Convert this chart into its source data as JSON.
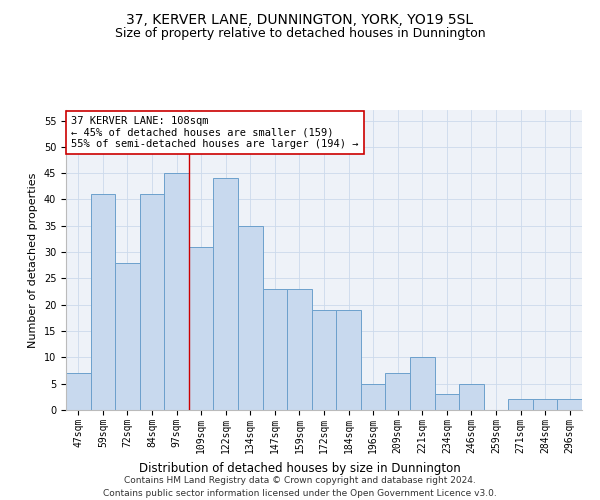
{
  "title": "37, KERVER LANE, DUNNINGTON, YORK, YO19 5SL",
  "subtitle": "Size of property relative to detached houses in Dunnington",
  "xlabel": "Distribution of detached houses by size in Dunnington",
  "ylabel": "Number of detached properties",
  "categories": [
    "47sqm",
    "59sqm",
    "72sqm",
    "84sqm",
    "97sqm",
    "109sqm",
    "122sqm",
    "134sqm",
    "147sqm",
    "159sqm",
    "172sqm",
    "184sqm",
    "196sqm",
    "209sqm",
    "221sqm",
    "234sqm",
    "246sqm",
    "259sqm",
    "271sqm",
    "284sqm",
    "296sqm"
  ],
  "values": [
    7,
    41,
    28,
    41,
    45,
    31,
    44,
    35,
    23,
    23,
    19,
    19,
    5,
    7,
    10,
    3,
    5,
    0,
    2,
    2,
    2
  ],
  "bar_color": "#c8d9ee",
  "bar_edge_color": "#6ca0cc",
  "grid_color": "#ccdaeb",
  "reference_line_x": 4.5,
  "reference_line_color": "#cc0000",
  "annotation_text": "37 KERVER LANE: 108sqm\n← 45% of detached houses are smaller (159)\n55% of semi-detached houses are larger (194) →",
  "annotation_box_color": "#ffffff",
  "annotation_box_edge": "#cc0000",
  "ylim": [
    0,
    57
  ],
  "yticks": [
    0,
    5,
    10,
    15,
    20,
    25,
    30,
    35,
    40,
    45,
    50,
    55
  ],
  "footnote": "Contains HM Land Registry data © Crown copyright and database right 2024.\nContains public sector information licensed under the Open Government Licence v3.0.",
  "title_fontsize": 10,
  "subtitle_fontsize": 9,
  "xlabel_fontsize": 8.5,
  "ylabel_fontsize": 8,
  "tick_fontsize": 7,
  "annotation_fontsize": 7.5,
  "footnote_fontsize": 6.5
}
